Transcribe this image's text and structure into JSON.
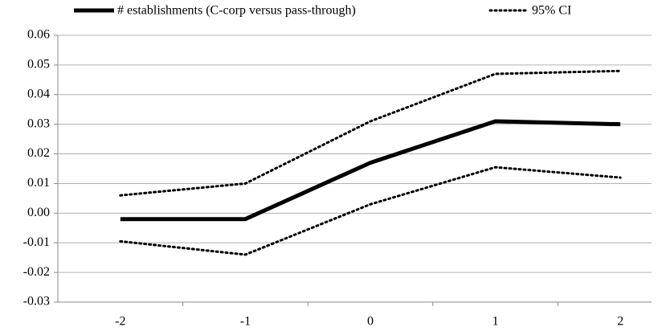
{
  "chart_data": {
    "type": "line",
    "categories": [
      "-2",
      "-1",
      "0",
      "1",
      "2"
    ],
    "series": [
      {
        "name": "# establishments (C-corp versus pass-through)",
        "color": "#000000",
        "values": [
          -0.002,
          -0.002,
          0.017,
          0.031,
          0.03
        ]
      }
    ],
    "ci": {
      "name": "95% CI",
      "color": "#000000",
      "upper": [
        0.006,
        0.01,
        0.031,
        0.047,
        0.048
      ],
      "lower": [
        -0.0095,
        -0.014,
        0.003,
        0.0155,
        0.012
      ]
    },
    "ylim": [
      -0.03,
      0.06
    ],
    "yticks": [
      -0.03,
      -0.02,
      -0.01,
      {
        "value": 0,
        "label": "0.00"
      },
      0.01,
      0.02,
      0.03,
      0.04,
      0.05,
      0.06
    ],
    "grid": true,
    "legend": "top"
  }
}
